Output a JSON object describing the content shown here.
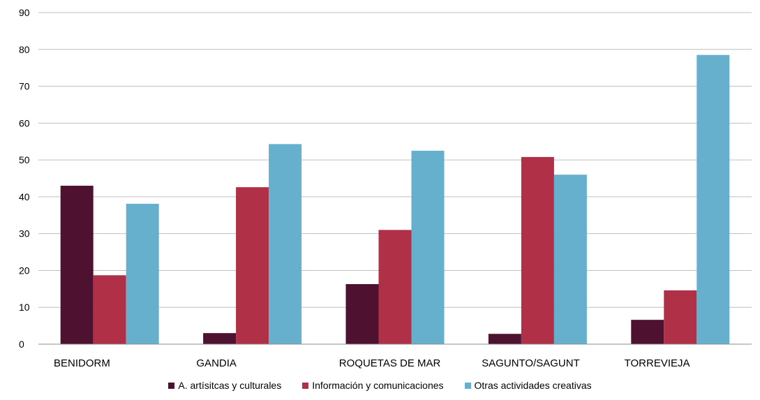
{
  "chart_data": {
    "type": "bar",
    "title": "",
    "xlabel": "",
    "ylabel": "",
    "ylim": [
      0,
      90
    ],
    "yticks": [
      0,
      10,
      20,
      30,
      40,
      50,
      60,
      70,
      80,
      90
    ],
    "grid": true,
    "legend_position": "bottom",
    "categories": [
      "BENIDORM",
      "GANDIA",
      "ROQUETAS DE MAR",
      "SAGUNTO/SAGUNT",
      "TORREVIEJA"
    ],
    "series": [
      {
        "name": "A. artísitcas y culturales",
        "color": "#4e1230",
        "values": [
          43,
          3,
          16.3,
          2.8,
          6.6
        ]
      },
      {
        "name": "Información y comunicaciones",
        "color": "#b03048",
        "values": [
          18.7,
          42.6,
          31,
          50.8,
          14.6
        ]
      },
      {
        "name": "Otras actividades creativas",
        "color": "#66b0cd",
        "values": [
          38.1,
          54.3,
          52.5,
          46,
          78.5
        ]
      }
    ]
  }
}
